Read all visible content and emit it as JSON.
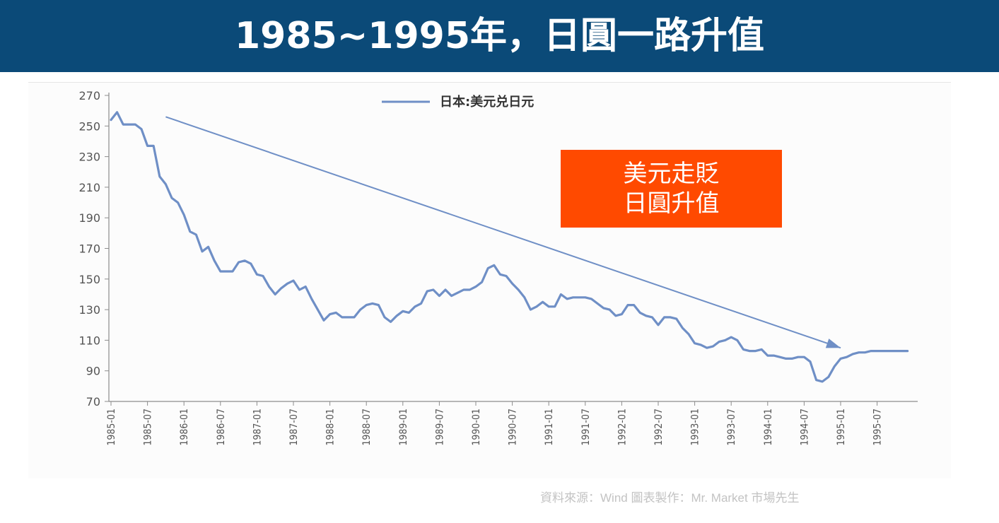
{
  "header": {
    "title": "1985~1995年，日圓一路升值"
  },
  "callout": {
    "line1": "美元走貶",
    "line2": "日圓升值"
  },
  "footer": {
    "source": "資料來源：Wind  圖表製作：Mr. Market 市場先生"
  },
  "colors": {
    "title_bar": "#0b4a78",
    "series": "#6f8fc6",
    "callout_bg": "#ff4a00",
    "trend_arrow": "#6f8fc6"
  },
  "chart_data": {
    "type": "line",
    "title": "",
    "xlabel": "",
    "ylabel": "",
    "ylim": [
      70,
      270
    ],
    "y_ticks": [
      270,
      250,
      230,
      210,
      190,
      170,
      150,
      130,
      110,
      90,
      70
    ],
    "x_tick_labels": [
      "1985-01",
      "1985-07",
      "1986-01",
      "1986-07",
      "1987-01",
      "1987-07",
      "1988-01",
      "1988-07",
      "1989-01",
      "1989-07",
      "1990-01",
      "1990-07",
      "1991-01",
      "1991-07",
      "1992-01",
      "1992-07",
      "1993-01",
      "1993-07",
      "1994-01",
      "1994-07",
      "1995-01",
      "1995-07"
    ],
    "legend": {
      "placement": "top-center",
      "entries": [
        "日本:美元兑日元"
      ]
    },
    "series": [
      {
        "name": "日本:美元兑日元",
        "x": [
          "1985-01",
          "1985-02",
          "1985-03",
          "1985-04",
          "1985-05",
          "1985-06",
          "1985-07",
          "1985-08",
          "1985-09",
          "1985-10",
          "1985-11",
          "1985-12",
          "1986-01",
          "1986-02",
          "1986-03",
          "1986-04",
          "1986-05",
          "1986-06",
          "1986-07",
          "1986-08",
          "1986-09",
          "1986-10",
          "1986-11",
          "1986-12",
          "1987-01",
          "1987-02",
          "1987-03",
          "1987-04",
          "1987-05",
          "1987-06",
          "1987-07",
          "1987-08",
          "1987-09",
          "1987-10",
          "1987-11",
          "1987-12",
          "1988-01",
          "1988-02",
          "1988-03",
          "1988-04",
          "1988-05",
          "1988-06",
          "1988-07",
          "1988-08",
          "1988-09",
          "1988-10",
          "1988-11",
          "1988-12",
          "1989-01",
          "1989-02",
          "1989-03",
          "1989-04",
          "1989-05",
          "1989-06",
          "1989-07",
          "1989-08",
          "1989-09",
          "1989-10",
          "1989-11",
          "1989-12",
          "1990-01",
          "1990-02",
          "1990-03",
          "1990-04",
          "1990-05",
          "1990-06",
          "1990-07",
          "1990-08",
          "1990-09",
          "1990-10",
          "1990-11",
          "1990-12",
          "1991-01",
          "1991-02",
          "1991-03",
          "1991-04",
          "1991-05",
          "1991-06",
          "1991-07",
          "1991-08",
          "1991-09",
          "1991-10",
          "1991-11",
          "1991-12",
          "1992-01",
          "1992-02",
          "1992-03",
          "1992-04",
          "1992-05",
          "1992-06",
          "1992-07",
          "1992-08",
          "1992-09",
          "1992-10",
          "1992-11",
          "1992-12",
          "1993-01",
          "1993-02",
          "1993-03",
          "1993-04",
          "1993-05",
          "1993-06",
          "1993-07",
          "1993-08",
          "1993-09",
          "1993-10",
          "1993-11",
          "1993-12",
          "1994-01",
          "1994-02",
          "1994-03",
          "1994-04",
          "1994-05",
          "1994-06",
          "1994-07",
          "1994-08",
          "1994-09",
          "1994-10",
          "1994-11",
          "1994-12",
          "1995-01",
          "1995-02",
          "1995-03",
          "1995-04",
          "1995-05",
          "1995-06",
          "1995-07",
          "1995-08",
          "1995-09",
          "1995-10",
          "1995-11",
          "1995-12"
        ],
        "values": [
          254,
          259,
          251,
          251,
          251,
          248,
          237,
          237,
          217,
          212,
          203,
          200,
          192,
          181,
          179,
          168,
          171,
          162,
          155,
          155,
          155,
          161,
          162,
          160,
          153,
          152,
          145,
          140,
          144,
          147,
          149,
          143,
          145,
          137,
          130,
          123,
          127,
          128,
          125,
          125,
          125,
          130,
          133,
          134,
          133,
          125,
          122,
          126,
          129,
          128,
          132,
          134,
          142,
          143,
          139,
          143,
          139,
          141,
          143,
          143,
          145,
          148,
          157,
          159,
          153,
          152,
          147,
          143,
          138,
          130,
          132,
          135,
          132,
          132,
          140,
          137,
          138,
          138,
          138,
          137,
          134,
          131,
          130,
          126,
          127,
          133,
          133,
          128,
          126,
          125,
          120,
          125,
          125,
          124,
          118,
          114,
          108,
          107,
          105,
          106,
          109,
          110,
          112,
          110,
          104,
          103,
          103,
          104,
          100,
          100,
          99,
          98,
          98,
          99,
          99,
          96,
          84,
          83,
          86,
          93,
          98,
          99,
          101,
          102,
          102,
          103,
          103,
          103,
          103,
          103,
          103,
          103
        ]
      }
    ],
    "annotations": [
      {
        "type": "trend-arrow",
        "from": {
          "x": "1985-10",
          "y": 256
        },
        "to": {
          "x": "1995-01",
          "y": 105
        }
      }
    ]
  }
}
